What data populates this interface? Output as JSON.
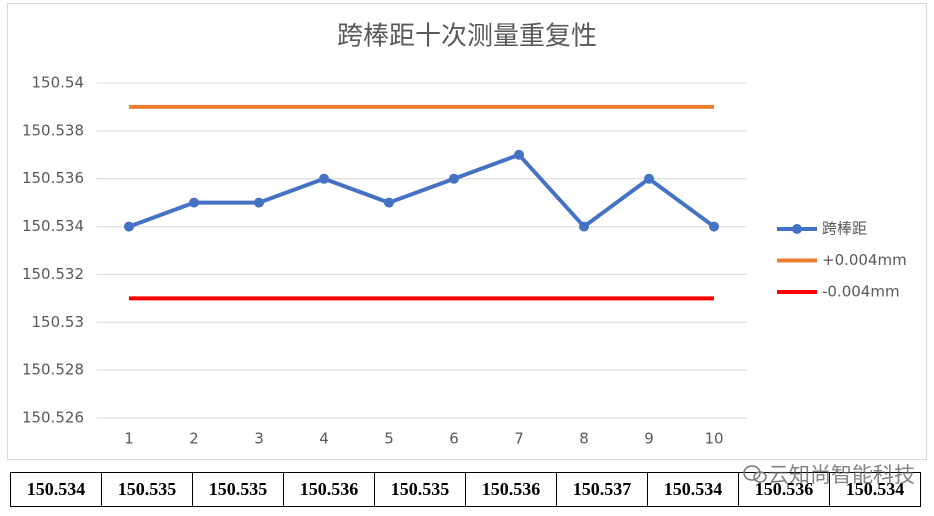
{
  "chart_data": {
    "type": "line",
    "title": "跨棒距十次测量重复性",
    "categories": [
      "1",
      "2",
      "3",
      "4",
      "5",
      "6",
      "7",
      "8",
      "9",
      "10"
    ],
    "series": [
      {
        "name": "跨棒距",
        "color": "#4472c4",
        "markers": true,
        "values": [
          150.534,
          150.535,
          150.535,
          150.536,
          150.535,
          150.536,
          150.537,
          150.534,
          150.536,
          150.534
        ]
      },
      {
        "name": "+0.004mm",
        "color": "#ed7d31",
        "markers": false,
        "values": [
          150.539,
          150.539,
          150.539,
          150.539,
          150.539,
          150.539,
          150.539,
          150.539,
          150.539,
          150.539
        ]
      },
      {
        "name": "-0.004mm",
        "color": "#ff0000",
        "markers": false,
        "values": [
          150.531,
          150.531,
          150.531,
          150.531,
          150.531,
          150.531,
          150.531,
          150.531,
          150.531,
          150.531
        ]
      }
    ],
    "ylim": [
      150.526,
      150.54
    ],
    "yticks": [
      150.526,
      150.528,
      150.53,
      150.532,
      150.534,
      150.536,
      150.538,
      150.54
    ],
    "grid": true,
    "legend": "right"
  },
  "table": {
    "rows": [
      [
        "150.534",
        "150.535",
        "150.535",
        "150.536",
        "150.535",
        "150.536",
        "150.537",
        "150.534",
        "150.536",
        "150.534"
      ]
    ]
  },
  "watermark": "云知尚智能科技"
}
